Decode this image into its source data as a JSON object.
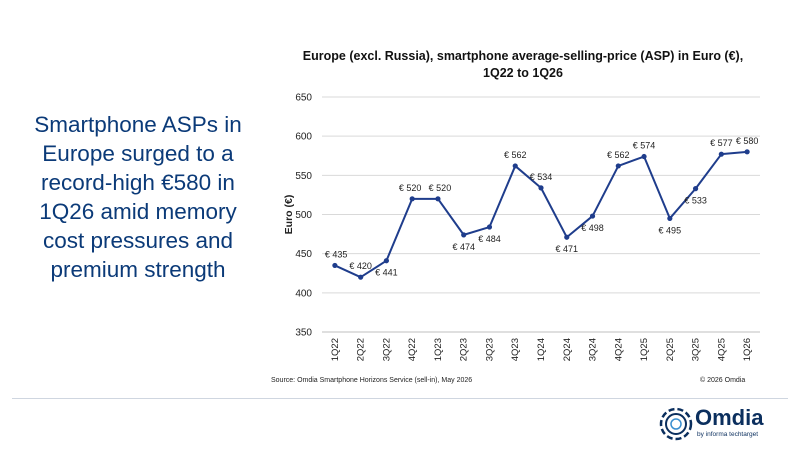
{
  "headline": "Smartphone ASPs in Europe surged to a record-high €580 in 1Q26 amid memory cost pressures and premium strength",
  "chart_data": {
    "type": "line",
    "title_line1": "Europe (excl. Russia), smartphone average-selling-price (ASP) in Euro (€),",
    "title_line2": "1Q22 to 1Q26",
    "ylabel": "Euro (€)",
    "xlabel": "",
    "categories": [
      "1Q22",
      "2Q22",
      "3Q22",
      "4Q22",
      "1Q23",
      "2Q23",
      "3Q23",
      "4Q23",
      "1Q24",
      "2Q24",
      "3Q24",
      "4Q24",
      "1Q25",
      "2Q25",
      "3Q25",
      "4Q25",
      "1Q26"
    ],
    "values": [
      435,
      420,
      441,
      520,
      520,
      474,
      484,
      562,
      534,
      471,
      498,
      562,
      574,
      495,
      533,
      577,
      580
    ],
    "data_labels": [
      "€ 435",
      "€ 420",
      "€ 441",
      "€ 520",
      "€ 520",
      "€ 474",
      "€ 484",
      "€ 562",
      "€ 534",
      "€ 471",
      "€ 498",
      "€ 562",
      "€ 574",
      "€ 495",
      "€ 533",
      "€ 577",
      "€ 580"
    ],
    "ylim": [
      350,
      650
    ],
    "yticks": [
      350,
      400,
      450,
      500,
      550,
      600,
      650
    ],
    "grid": true,
    "legend": "none",
    "line_color": "#1f3d8c",
    "grid_color": "#d9d9d9"
  },
  "footer": {
    "source": "Source: Omdia Smartphone Horizons Service (sell-in), May 2026",
    "copyright": "© 2026 Omdia"
  },
  "logo": {
    "name": "Omdia",
    "tagline": "by informa techtarget",
    "icon": "omdia-logo-icon",
    "color": "#0b2f5e"
  }
}
